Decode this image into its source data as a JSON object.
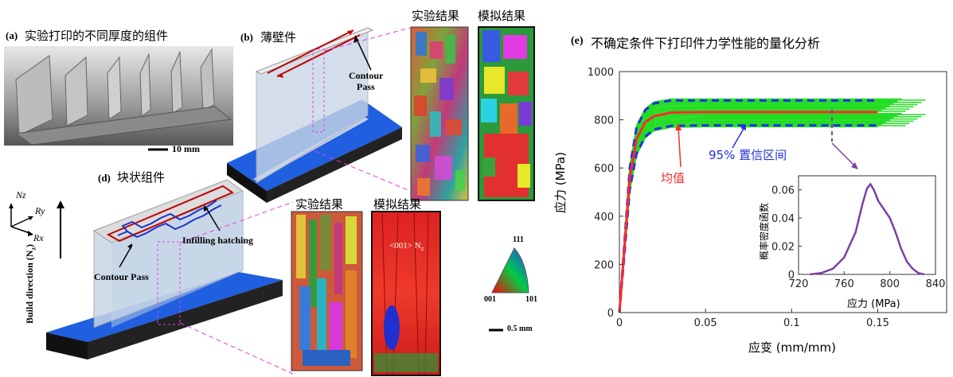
{
  "panels": {
    "a": {
      "tag": "(a)",
      "title": "实验打印的不同厚度的组件",
      "scale_bar": "10 mm"
    },
    "b": {
      "tag": "(b)",
      "title": "薄壁件",
      "contour_label_1": "Contour",
      "contour_label_2": "Pass",
      "micro_exp_title": "实验结果",
      "micro_sim_title": "模拟结果"
    },
    "d": {
      "tag": "(d)",
      "title": "块状组件",
      "infill_label": "Infilling hatching",
      "contour_label": "Contour Pass",
      "build_direction": "Build direction (N",
      "build_direction_sub": "z",
      "build_direction_end": ")",
      "micro_exp_title": "实验结果",
      "micro_sim_title": "模拟结果",
      "sim_overlay": "<001> N",
      "sim_overlay_sub": "z"
    },
    "axes": {
      "nz": "Nz",
      "ry": "Ry",
      "rx": "Rx"
    },
    "ipf": {
      "top": "111",
      "bottom_left": "001",
      "bottom_right": "101",
      "scale_bar": "0.5 mm"
    }
  },
  "chart_title": {
    "tag": "(e)",
    "text": "不确定条件下打印件力学性能的量化分析"
  },
  "chart_data": {
    "type": "line",
    "xlabel": "应变 (mm/mm)",
    "ylabel": "应力 (MPa)",
    "xlim": [
      0,
      0.19
    ],
    "ylim": [
      0,
      1000
    ],
    "x_ticks": [
      "0",
      "0.05",
      "0.1",
      "0.15"
    ],
    "y_ticks": [
      "0",
      "200",
      "400",
      "600",
      "800",
      "1000"
    ],
    "annotations": {
      "mean": "均值",
      "ci": "95% 置信区间"
    },
    "mean_curve": {
      "x": [
        0,
        0.003,
        0.006,
        0.01,
        0.015,
        0.02,
        0.03,
        0.05,
        0.1,
        0.15
      ],
      "y": [
        0,
        280,
        560,
        720,
        790,
        815,
        830,
        832,
        832,
        832
      ]
    },
    "ci_upper": {
      "x": [
        0,
        0.003,
        0.006,
        0.01,
        0.015,
        0.02,
        0.03,
        0.05,
        0.1,
        0.15
      ],
      "y": [
        0,
        300,
        600,
        770,
        840,
        868,
        880,
        880,
        880,
        880
      ]
    },
    "ci_lower": {
      "x": [
        0,
        0.003,
        0.006,
        0.01,
        0.015,
        0.02,
        0.03,
        0.05,
        0.1,
        0.15
      ],
      "y": [
        0,
        250,
        510,
        660,
        730,
        760,
        775,
        777,
        777,
        777
      ]
    },
    "inset": {
      "type": "line",
      "xlabel": "应力 (MPa)",
      "ylabel": "概率密度函数",
      "xlim": [
        720,
        840
      ],
      "ylim": [
        0,
        0.07
      ],
      "x_ticks": [
        "720",
        "760",
        "800",
        "840"
      ],
      "y_ticks": [
        "0",
        "0.02",
        "0.04",
        "0.06"
      ],
      "x": [
        730,
        740,
        750,
        760,
        770,
        776,
        780,
        783,
        786,
        790,
        795,
        800,
        805,
        810,
        815,
        820,
        825,
        830
      ],
      "y": [
        0,
        0.001,
        0.004,
        0.012,
        0.03,
        0.05,
        0.061,
        0.064,
        0.06,
        0.052,
        0.046,
        0.04,
        0.03,
        0.018,
        0.009,
        0.004,
        0.001,
        0
      ]
    }
  },
  "colors": {
    "mean": "#ff2a2a",
    "ci": "#2233dd",
    "band": "#22dd22",
    "inset_curve": "#7b3fa8",
    "annotation_arrow": "#7b3fa8",
    "base_plate": "#1f5fe0"
  }
}
